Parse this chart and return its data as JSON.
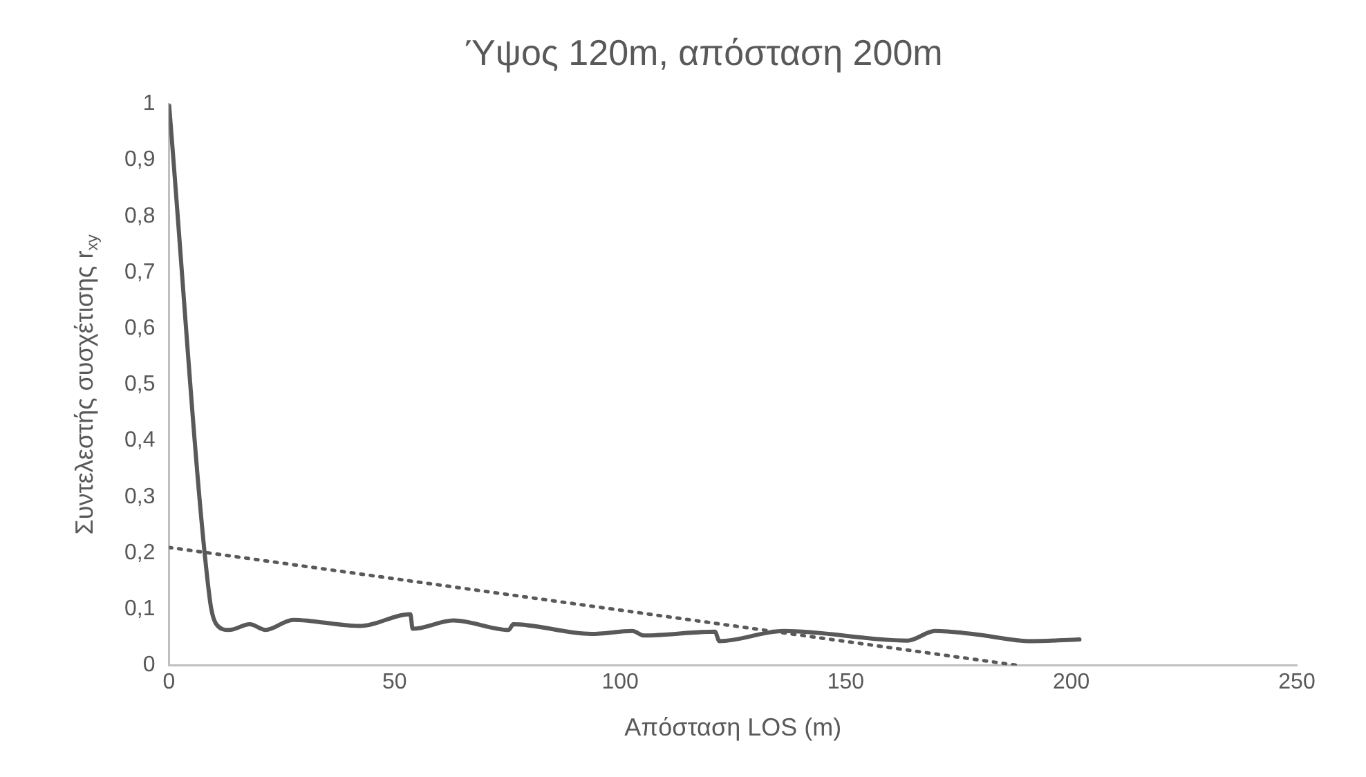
{
  "chart_data": {
    "type": "line",
    "title": "Ύψος 120m, απόσταση 200m",
    "xlabel": "Απόσταση LOS (m)",
    "ylabel": "Συντελεστής συσχέτισης r$_{xy}$",
    "xlim": [
      0,
      250
    ],
    "xticks": [
      0,
      50,
      100,
      150,
      200,
      250
    ],
    "ylim": [
      0,
      1
    ],
    "yticks": [
      0,
      {
        "value": 0.1,
        "label": "0,1"
      },
      {
        "value": 0.2,
        "label": "0,2"
      },
      {
        "value": 0.3,
        "label": "0,3"
      },
      {
        "value": 0.4,
        "label": "0,4"
      },
      {
        "value": 0.5,
        "label": "0,5"
      },
      {
        "value": 0.6,
        "label": "0,6"
      },
      {
        "value": 0.7,
        "label": "0,7"
      },
      {
        "value": 0.8,
        "label": "0,8"
      },
      {
        "value": 0.9,
        "label": "0,9"
      },
      1
    ],
    "grid": false,
    "legend": false,
    "marker": "none",
    "series": [
      {
        "color": "#595959",
        "line_style": "solid",
        "x": [
          0,
          9,
          10.5,
          13.3,
          17.9,
          21.4,
          27.5,
          42.3,
          53.5,
          54,
          63.1,
          75.3,
          76.3,
          93.6,
          102.7,
          105.3,
          121,
          122,
          136.3,
          163.7,
          169.8,
          178,
          191.2,
          201.8
        ],
        "values": [
          1,
          0.12,
          0.073,
          0.063,
          0.073,
          0.063,
          0.081,
          0.07,
          0.091,
          0.065,
          0.08,
          0.063,
          0.073,
          0.056,
          0.061,
          0.053,
          0.06,
          0.043,
          0.061,
          0.044,
          0.061,
          0.056,
          0.043,
          0.046
        ]
      },
      {
        "color": "#595959",
        "line_style": "dotted",
        "x": [
          0,
          188
        ],
        "values": [
          0.21,
          0
        ]
      }
    ]
  }
}
